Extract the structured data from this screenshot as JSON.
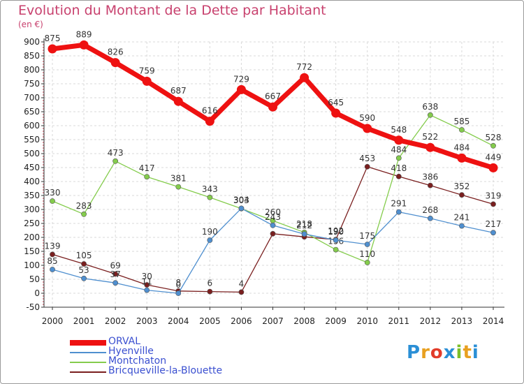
{
  "title": "Evolution du Montant de la Dette par Habitant",
  "subtitle": "(en €)",
  "logo": {
    "letters": [
      "P",
      "r",
      "o",
      "x",
      "i",
      "t",
      "i"
    ],
    "colors": [
      "#2a8fd6",
      "#e8a020",
      "#e23c2a",
      "#2a8fd6",
      "#7cbf2a",
      "#e8a020",
      "#2a8fd6"
    ]
  },
  "chart_data": {
    "type": "line",
    "x": [
      "2000",
      "2001",
      "2002",
      "2003",
      "2004",
      "2005",
      "2006",
      "2007",
      "2008",
      "2009",
      "2010",
      "2011",
      "2012",
      "2013",
      "2014"
    ],
    "ylim": [
      -50,
      900
    ],
    "yticks": [
      "-50",
      "0",
      "50",
      "100",
      "150",
      "200",
      "250",
      "300",
      "350",
      "400",
      "450",
      "500",
      "550",
      "600",
      "650",
      "700",
      "750",
      "800",
      "850",
      "900"
    ],
    "grid": true,
    "legend_position": "bottom-left",
    "series": [
      {
        "name": "Bricqueville-la-Blouette",
        "color": "#7a1f1f",
        "emphasis": false,
        "values": [
          139,
          105,
          69,
          30,
          8,
          6,
          4,
          213,
          202,
          192,
          453,
          418,
          386,
          352,
          319
        ],
        "labels": [
          "139",
          "105",
          "69",
          "30",
          "8",
          "6",
          "4",
          "",
          "",
          "192",
          "453",
          "418",
          "386",
          "352",
          "319"
        ]
      },
      {
        "name": "Montchaton",
        "color": "#84cc4c",
        "emphasis": false,
        "values": [
          330,
          283,
          473,
          417,
          381,
          343,
          303,
          260,
          218,
          156,
          110,
          484,
          638,
          585,
          528
        ],
        "labels": [
          "330",
          "283",
          "473",
          "417",
          "381",
          "343",
          "303",
          "260",
          "218",
          "156",
          "110",
          "484",
          "638",
          "585",
          "528"
        ]
      },
      {
        "name": "Hyenville",
        "color": "#4f8fcf",
        "emphasis": false,
        "values": [
          85,
          53,
          37,
          11,
          0,
          190,
          304,
          243,
          212,
          190,
          175,
          291,
          268,
          241,
          217
        ],
        "labels": [
          "85",
          "53",
          "37",
          "11",
          "0",
          "190",
          "304",
          "243",
          "212",
          "190",
          "175",
          "291",
          "268",
          "241",
          "217"
        ]
      },
      {
        "name": "ORVAL",
        "color": "#ee1111",
        "emphasis": true,
        "values": [
          875,
          889,
          826,
          759,
          687,
          616,
          729,
          667,
          772,
          645,
          590,
          548,
          522,
          484,
          449
        ],
        "labels": [
          "875",
          "889",
          "826",
          "759",
          "687",
          "616",
          "729",
          "667",
          "772",
          "645",
          "590",
          "548",
          "522",
          "484",
          "449"
        ]
      }
    ]
  }
}
